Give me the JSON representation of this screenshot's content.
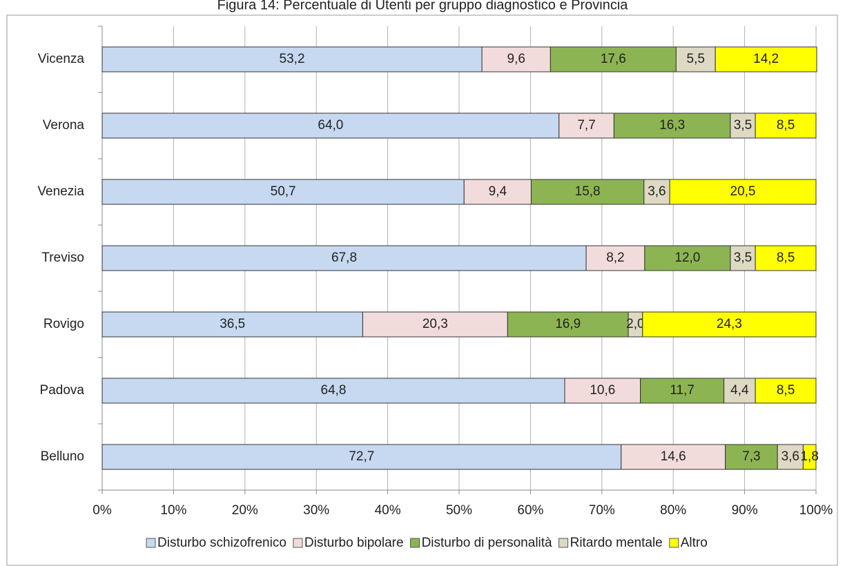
{
  "chart_data": {
    "type": "stacked-bar-horizontal",
    "title": "Figura 14: Percentuale di Utenti per gruppo diagnostico e Provincia",
    "categories": [
      "Vicenza",
      "Verona",
      "Venezia",
      "Treviso",
      "Rovigo",
      "Padova",
      "Belluno"
    ],
    "series": [
      {
        "name": "Disturbo schizofrenico",
        "color": "#c6d9f1",
        "values": [
          53.2,
          64.0,
          50.7,
          67.8,
          36.5,
          64.8,
          72.7
        ],
        "value_labels": [
          "53,2",
          "64,0",
          "50,7",
          "67,8",
          "36,5",
          "64,8",
          "72,7"
        ]
      },
      {
        "name": "Disturbo bipolare",
        "color": "#f2dcdb",
        "values": [
          9.6,
          7.7,
          9.4,
          8.2,
          20.3,
          10.6,
          14.6
        ],
        "value_labels": [
          "9,6",
          "7,7",
          "9,4",
          "8,2",
          "20,3",
          "10,6",
          "14,6"
        ]
      },
      {
        "name": "Disturbo di personalità",
        "color": "#8db452",
        "values": [
          17.6,
          16.3,
          15.8,
          12.0,
          16.9,
          11.7,
          7.3
        ],
        "value_labels": [
          "17,6",
          "16,3",
          "15,8",
          "12,0",
          "16,9",
          "11,7",
          "7,3"
        ]
      },
      {
        "name": "Ritardo mentale",
        "color": "#ddd9c3",
        "values": [
          5.5,
          3.5,
          3.6,
          3.5,
          2.0,
          4.4,
          3.6
        ],
        "value_labels": [
          "5,5",
          "3,5",
          "3,6",
          "3,5",
          "2,0",
          "4,4",
          "3,6"
        ]
      },
      {
        "name": "Altro",
        "color": "#ffff00",
        "values": [
          14.2,
          8.5,
          20.5,
          8.5,
          24.3,
          8.5,
          1.8
        ],
        "value_labels": [
          "14,2",
          "8,5",
          "20,5",
          "8,5",
          "24,3",
          "8,5",
          "1,8"
        ]
      }
    ],
    "xlim": [
      0,
      100
    ],
    "xticks": [
      {
        "value": 0,
        "label": "0%"
      },
      {
        "value": 10,
        "label": "10%"
      },
      {
        "value": 20,
        "label": "20%"
      },
      {
        "value": 30,
        "label": "30%"
      },
      {
        "value": 40,
        "label": "40%"
      },
      {
        "value": 50,
        "label": "50%"
      },
      {
        "value": 60,
        "label": "60%"
      },
      {
        "value": 70,
        "label": "70%"
      },
      {
        "value": 80,
        "label": "80%"
      },
      {
        "value": 90,
        "label": "90%"
      },
      {
        "value": 100,
        "label": "100%"
      }
    ],
    "grid": true,
    "legend": "bottom"
  }
}
